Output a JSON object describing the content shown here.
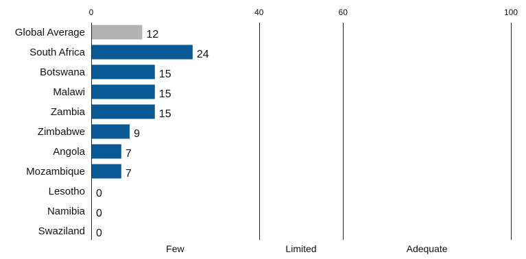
{
  "chart_data": {
    "type": "bar",
    "orientation": "horizontal",
    "categories": [
      "Global Average",
      "South Africa",
      "Botswana",
      "Malawi",
      "Zambia",
      "Zimbabwe",
      "Angola",
      "Mozambique",
      "Lesotho",
      "Namibia",
      "Swaziland"
    ],
    "values": [
      12,
      24,
      15,
      15,
      15,
      9,
      7,
      7,
      0,
      0,
      0
    ],
    "bar_colors": [
      "#b3b3b3",
      "#0b5a96",
      "#0b5a96",
      "#0b5a96",
      "#0b5a96",
      "#0b5a96",
      "#0b5a96",
      "#0b5a96",
      "#0b5a96",
      "#0b5a96",
      "#0b5a96"
    ],
    "xlim": [
      0,
      100
    ],
    "x_ticks": [
      0,
      40,
      60,
      100
    ],
    "zone_boundaries": [
      40,
      60,
      100
    ],
    "zones": [
      {
        "label": "Few",
        "range": [
          0,
          40
        ]
      },
      {
        "label": "Limited",
        "range": [
          40,
          60
        ]
      },
      {
        "label": "Adequate",
        "range": [
          60,
          100
        ]
      }
    ],
    "legend": "none",
    "grid": false
  }
}
